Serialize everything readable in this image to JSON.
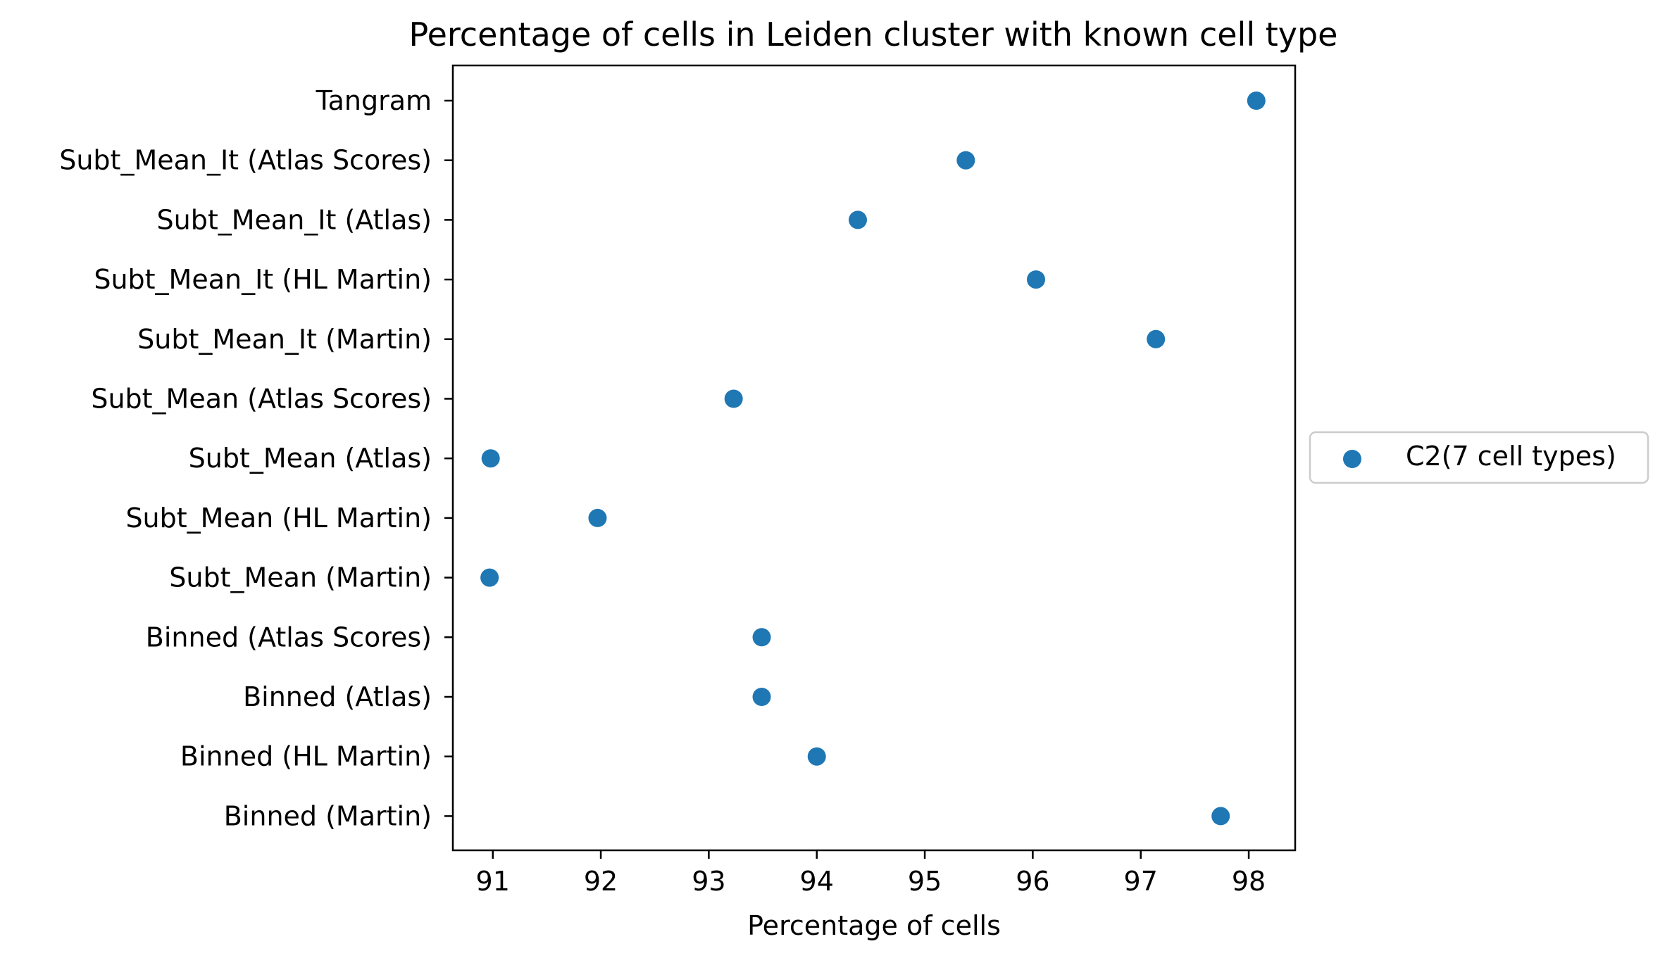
{
  "chart_data": {
    "type": "scatter",
    "title": "Percentage of cells in Leiden cluster with known cell type",
    "xlabel": "Percentage of cells",
    "ylabel": "",
    "xlim": [
      90.63,
      98.43
    ],
    "xticks": [
      91,
      92,
      93,
      94,
      95,
      96,
      97,
      98
    ],
    "categories": [
      "Tangram",
      "Subt_Mean_It (Atlas Scores)",
      "Subt_Mean_It (Atlas)",
      "Subt_Mean_It (HL Martin)",
      "Subt_Mean_It (Martin)",
      "Subt_Mean (Atlas Scores)",
      "Subt_Mean (Atlas)",
      "Subt_Mean (HL Martin)",
      "Subt_Mean (Martin)",
      "Binned (Atlas Scores)",
      "Binned (Atlas)",
      "Binned (HL Martin)",
      "Binned (Martin)"
    ],
    "series": [
      {
        "name": "C2(7 cell types)",
        "color": "#1f77b4",
        "values": [
          98.07,
          95.38,
          94.38,
          96.03,
          97.14,
          93.23,
          90.98,
          91.97,
          90.97,
          93.49,
          93.49,
          94.0,
          97.74
        ]
      }
    ],
    "grid": false,
    "legend_position": "center-right, outside plot"
  }
}
